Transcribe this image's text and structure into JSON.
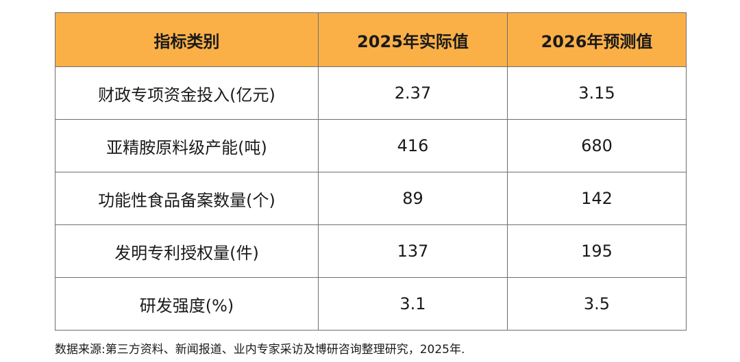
{
  "table": {
    "headers": [
      "指标类别",
      "2025年实际值",
      "2026年预测值"
    ],
    "rows": [
      [
        "财政专项资金投入(亿元)",
        "2.37",
        "3.15"
      ],
      [
        "亚精胺原料级产能(吨)",
        "416",
        "680"
      ],
      [
        "功能性食品备案数量(个)",
        "89",
        "142"
      ],
      [
        "发明专利授权量(件)",
        "137",
        "195"
      ],
      [
        "研发强度(%)",
        "3.1",
        "3.5"
      ]
    ]
  },
  "colors": {
    "header_background": "#fbb047",
    "border": "#6e6e6e"
  },
  "source_note": "数据来源:第三方资料、新闻报道、业内专家采访及博研咨询整理研究，2025年."
}
